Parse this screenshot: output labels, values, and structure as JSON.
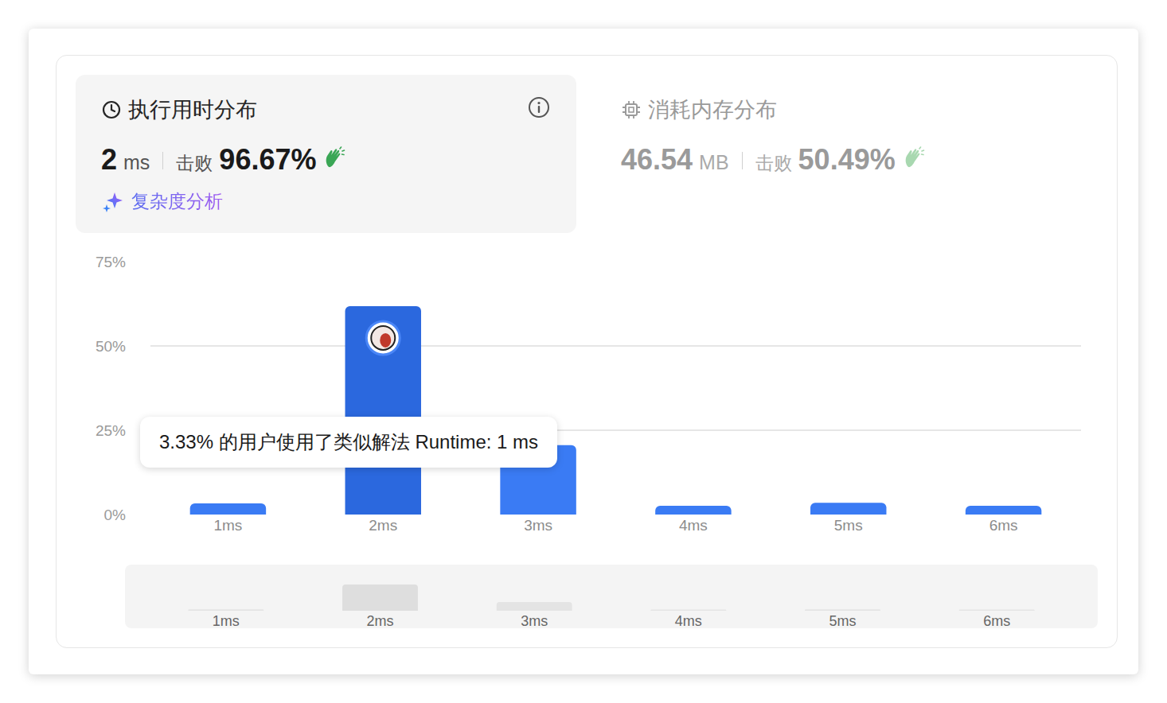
{
  "header": {
    "runtime": {
      "title": "执行用时分布",
      "value": "2",
      "unit": "ms",
      "beats_label": "击败",
      "beats": "96.67%",
      "link": "复杂度分析"
    },
    "memory": {
      "title": "消耗内存分布",
      "value": "46.54",
      "unit": "MB",
      "beats_label": "击败",
      "beats": "50.49%"
    }
  },
  "chart_data": {
    "type": "bar",
    "categories": [
      "1ms",
      "2ms",
      "3ms",
      "4ms",
      "5ms",
      "6ms"
    ],
    "values": [
      3.33,
      61.8,
      20.6,
      2.6,
      3.5,
      2.6
    ],
    "colors": [
      "#3a7bf4",
      "#2b68de",
      "#3a7bf4",
      "#3a7bf4",
      "#3a7bf4",
      "#3a7bf4"
    ],
    "ylim": [
      0,
      75
    ],
    "yticks": [
      {
        "value": 0,
        "label": "0%"
      },
      {
        "value": 25,
        "label": "25%"
      },
      {
        "value": 50,
        "label": "50%"
      },
      {
        "value": 75,
        "label": "75%"
      }
    ],
    "grid": true
  },
  "tooltip": "3.33% 的用户使用了类似解法 Runtime: 1 ms"
}
